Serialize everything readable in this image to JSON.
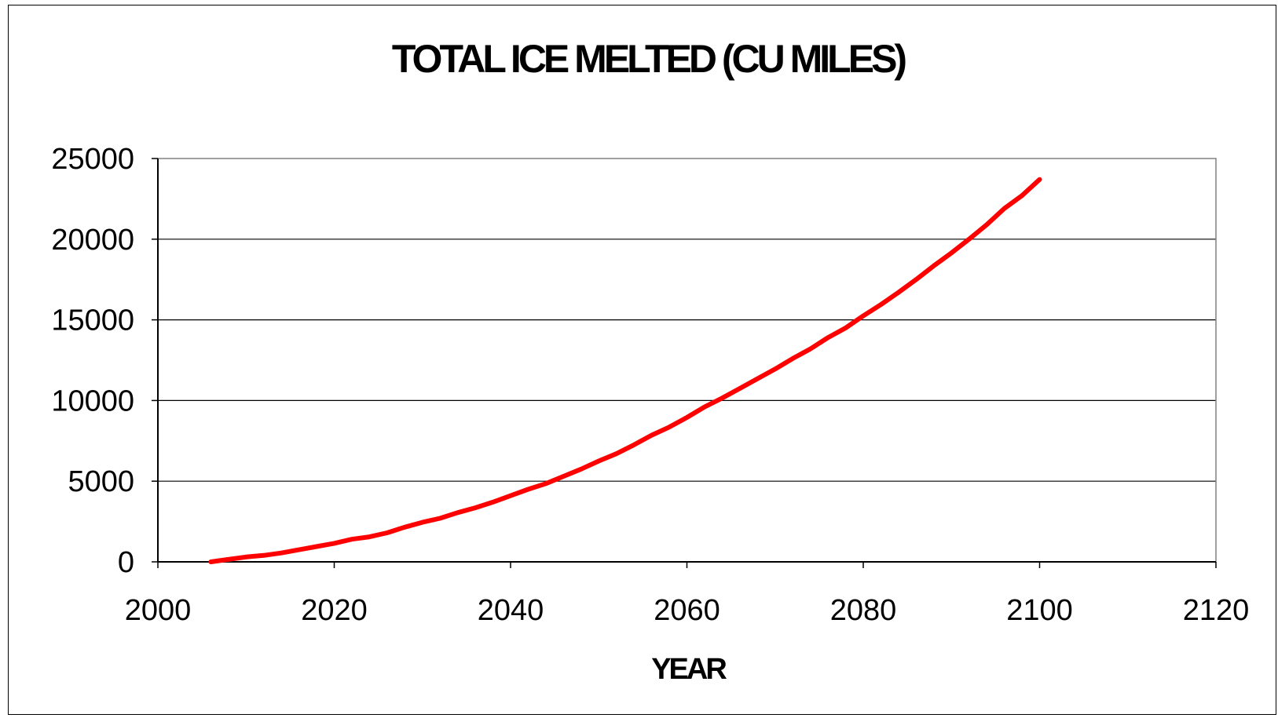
{
  "chart_data": {
    "type": "line",
    "title": "TOTAL ICE MELTED (CU MILES)",
    "xlabel": "YEAR",
    "ylabel": "",
    "xlim": [
      2000,
      2120
    ],
    "ylim": [
      0,
      25000
    ],
    "xticks": [
      2000,
      2020,
      2040,
      2060,
      2080,
      2100,
      2120
    ],
    "yticks": [
      0,
      5000,
      10000,
      15000,
      20000,
      25000
    ],
    "grid": "horizontal",
    "legend": "none",
    "series": [
      {
        "color": "#ff0000",
        "x": [
          2006,
          2008,
          2010,
          2012,
          2014,
          2016,
          2018,
          2020,
          2022,
          2024,
          2026,
          2028,
          2030,
          2032,
          2034,
          2036,
          2038,
          2040,
          2042,
          2044,
          2046,
          2048,
          2050,
          2052,
          2054,
          2056,
          2058,
          2060,
          2062,
          2064,
          2066,
          2068,
          2070,
          2072,
          2074,
          2076,
          2078,
          2080,
          2082,
          2084,
          2086,
          2088,
          2090,
          2092,
          2094,
          2096,
          2098,
          2100
        ],
        "y": [
          0,
          150,
          300,
          400,
          550,
          750,
          950,
          1150,
          1400,
          1550,
          1800,
          2150,
          2450,
          2700,
          3050,
          3350,
          3700,
          4100,
          4500,
          4850,
          5300,
          5750,
          6250,
          6700,
          7250,
          7850,
          8350,
          8950,
          9600,
          10150,
          10750,
          11350,
          11950,
          12600,
          13200,
          13900,
          14500,
          15250,
          15950,
          16700,
          17500,
          18350,
          19150,
          20000,
          20900,
          21900,
          22700,
          23700
        ]
      }
    ]
  }
}
